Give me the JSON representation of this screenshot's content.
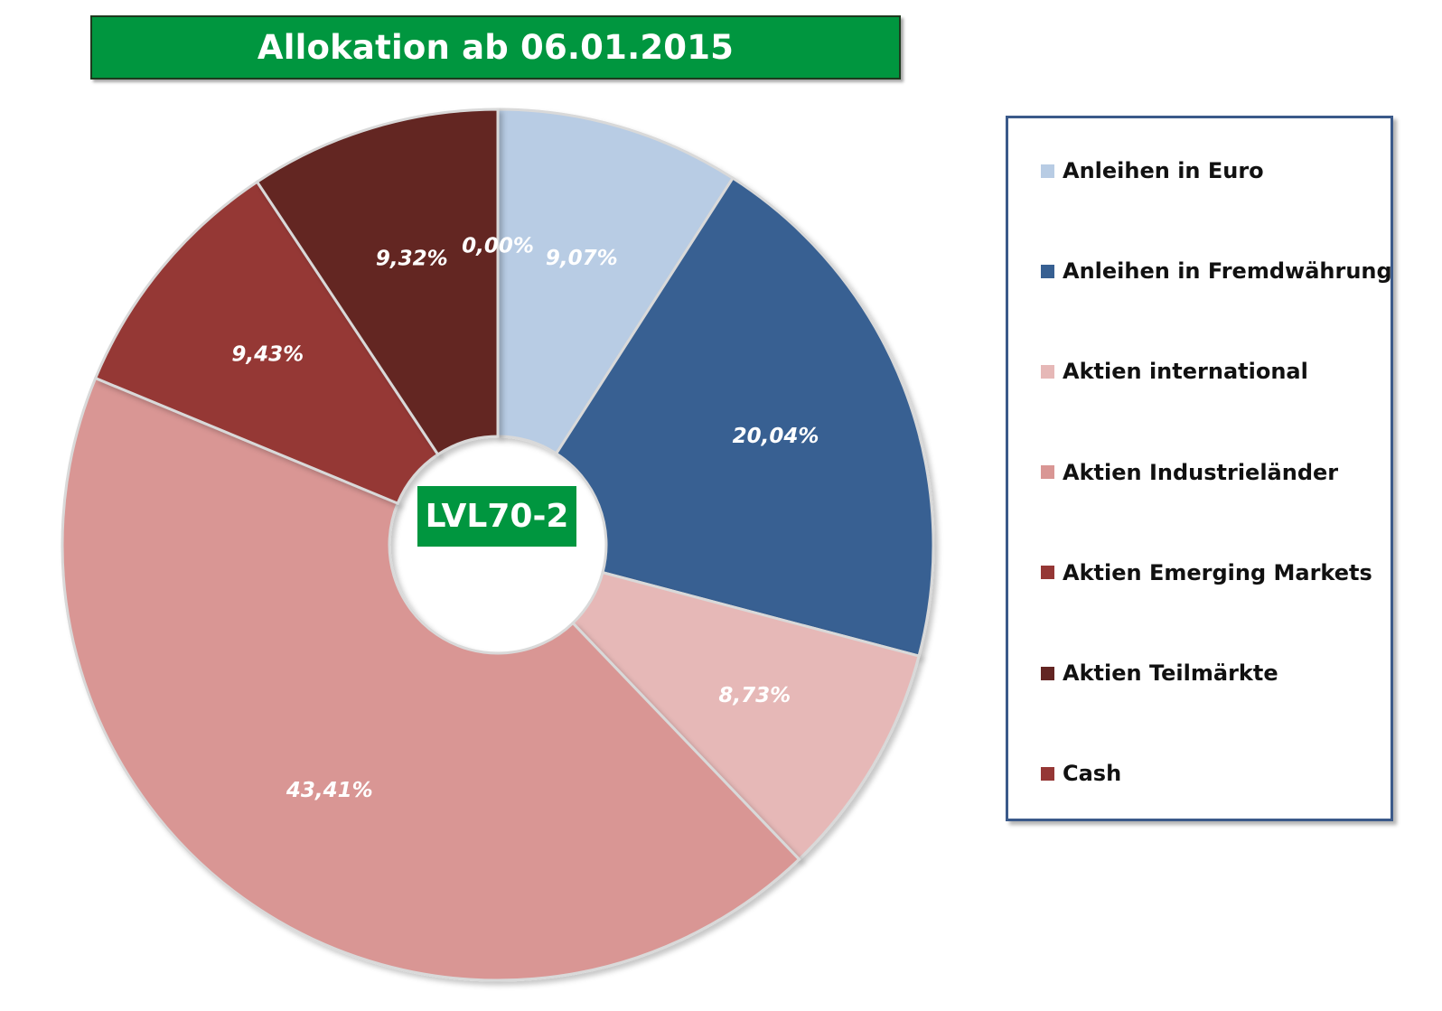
{
  "title": "Allokation ab 06.01.2015",
  "center_label": "LVL70-2",
  "chart_data": {
    "type": "pie",
    "title": "Allokation ab 06.01.2015",
    "variant": "donut",
    "start_angle_deg": 0,
    "direction": "clockwise",
    "legend_position": "right",
    "slices": [
      {
        "name": "Anleihen in Euro",
        "value": 9.07,
        "label": "9,07%",
        "color": "#b8cce4"
      },
      {
        "name": "Anleihen in Fremdwährung",
        "value": 20.04,
        "label": "20,04%",
        "color": "#376092"
      },
      {
        "name": "Aktien international",
        "value": 8.73,
        "label": "8,73%",
        "color": "#e6b8b7"
      },
      {
        "name": "Aktien Industrieländer",
        "value": 43.41,
        "label": "43,41%",
        "color": "#d99694"
      },
      {
        "name": "Aktien Emerging Markets",
        "value": 9.43,
        "label": "9,43%",
        "color": "#953735"
      },
      {
        "name": "Aktien Teilmärkte",
        "value": 9.32,
        "label": "9,32%",
        "color": "#632523"
      },
      {
        "name": "Cash",
        "value": 0.0,
        "label": "0,00%",
        "color": "#953735"
      }
    ]
  }
}
